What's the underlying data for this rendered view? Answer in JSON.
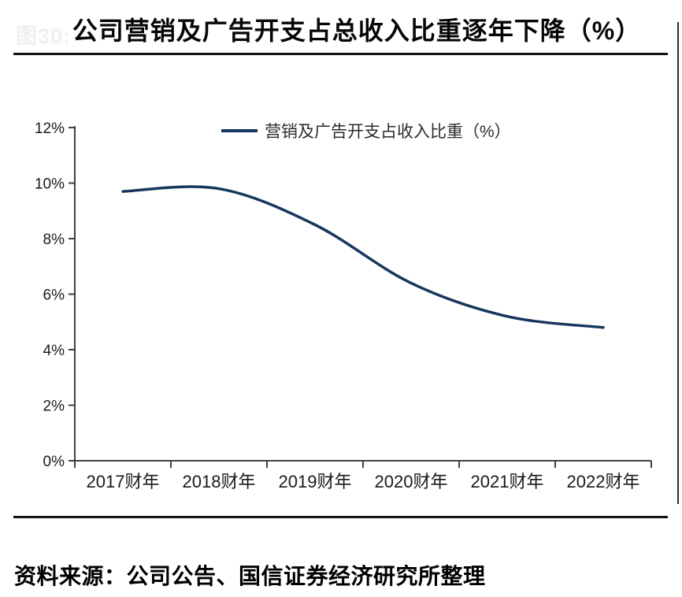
{
  "header": {
    "ghost_label": "图30:",
    "title": "公司营销及广告开支占总收入比重逐年下降（%）"
  },
  "chart_data": {
    "type": "line",
    "title": "公司营销及广告开支占总收入比重逐年下降（%）",
    "categories": [
      "2017财年",
      "2018财年",
      "2019财年",
      "2020财年",
      "2021财年",
      "2022财年"
    ],
    "series": [
      {
        "name": "营销及广告开支占收入比重（%）",
        "values": [
          9.7,
          9.8,
          8.5,
          6.4,
          5.2,
          4.8
        ],
        "color": "#17375E"
      }
    ],
    "xlabel": "",
    "ylabel": "",
    "ylim": [
      0,
      12
    ],
    "ytick_step": 2,
    "ytick_labels": [
      "0%",
      "2%",
      "4%",
      "6%",
      "8%",
      "10%",
      "12%"
    ],
    "grid": false,
    "smooth": true,
    "legend_position": "top-center",
    "axis_color": "#3f3f3f",
    "label_color": "#1a1a1a"
  },
  "footer": {
    "source": "资料来源：公司公告、国信证券经济研究所整理"
  }
}
